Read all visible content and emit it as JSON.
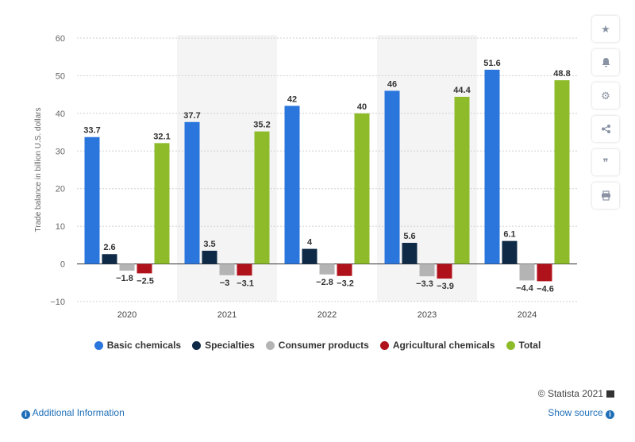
{
  "chart_data": {
    "type": "bar",
    "categories": [
      "2020",
      "2021",
      "2022",
      "2023",
      "2024"
    ],
    "series": [
      {
        "name": "Basic chemicals",
        "color": "#2a76dd",
        "values": [
          33.7,
          37.7,
          42,
          46,
          51.6
        ]
      },
      {
        "name": "Specialties",
        "color": "#0f2a46",
        "values": [
          2.6,
          3.5,
          4,
          5.6,
          6.1
        ]
      },
      {
        "name": "Consumer products",
        "color": "#b4b4b4",
        "values": [
          -1.8,
          -3,
          -2.8,
          -3.3,
          -4.4
        ]
      },
      {
        "name": "Agricultural chemicals",
        "color": "#b0121b",
        "values": [
          -2.5,
          -3.1,
          -3.2,
          -3.9,
          -4.6
        ]
      },
      {
        "name": "Total",
        "color": "#8dbb2a",
        "values": [
          32.1,
          35.2,
          40,
          44.4,
          48.8
        ]
      }
    ],
    "ylabel": "Trade balance in billion U.S. dollars",
    "ylim": [
      -10,
      60
    ],
    "yticks": [
      -10,
      0,
      10,
      20,
      30,
      40,
      50,
      60
    ],
    "grid": true,
    "legend_position": "bottom"
  },
  "toolbar": {
    "icons": [
      "star-icon",
      "bell-icon",
      "gear-icon",
      "share-icon",
      "quote-icon",
      "print-icon"
    ]
  },
  "footer": {
    "credit": "© Statista 2021",
    "additional_info": "Additional Information",
    "show_source": "Show source"
  }
}
